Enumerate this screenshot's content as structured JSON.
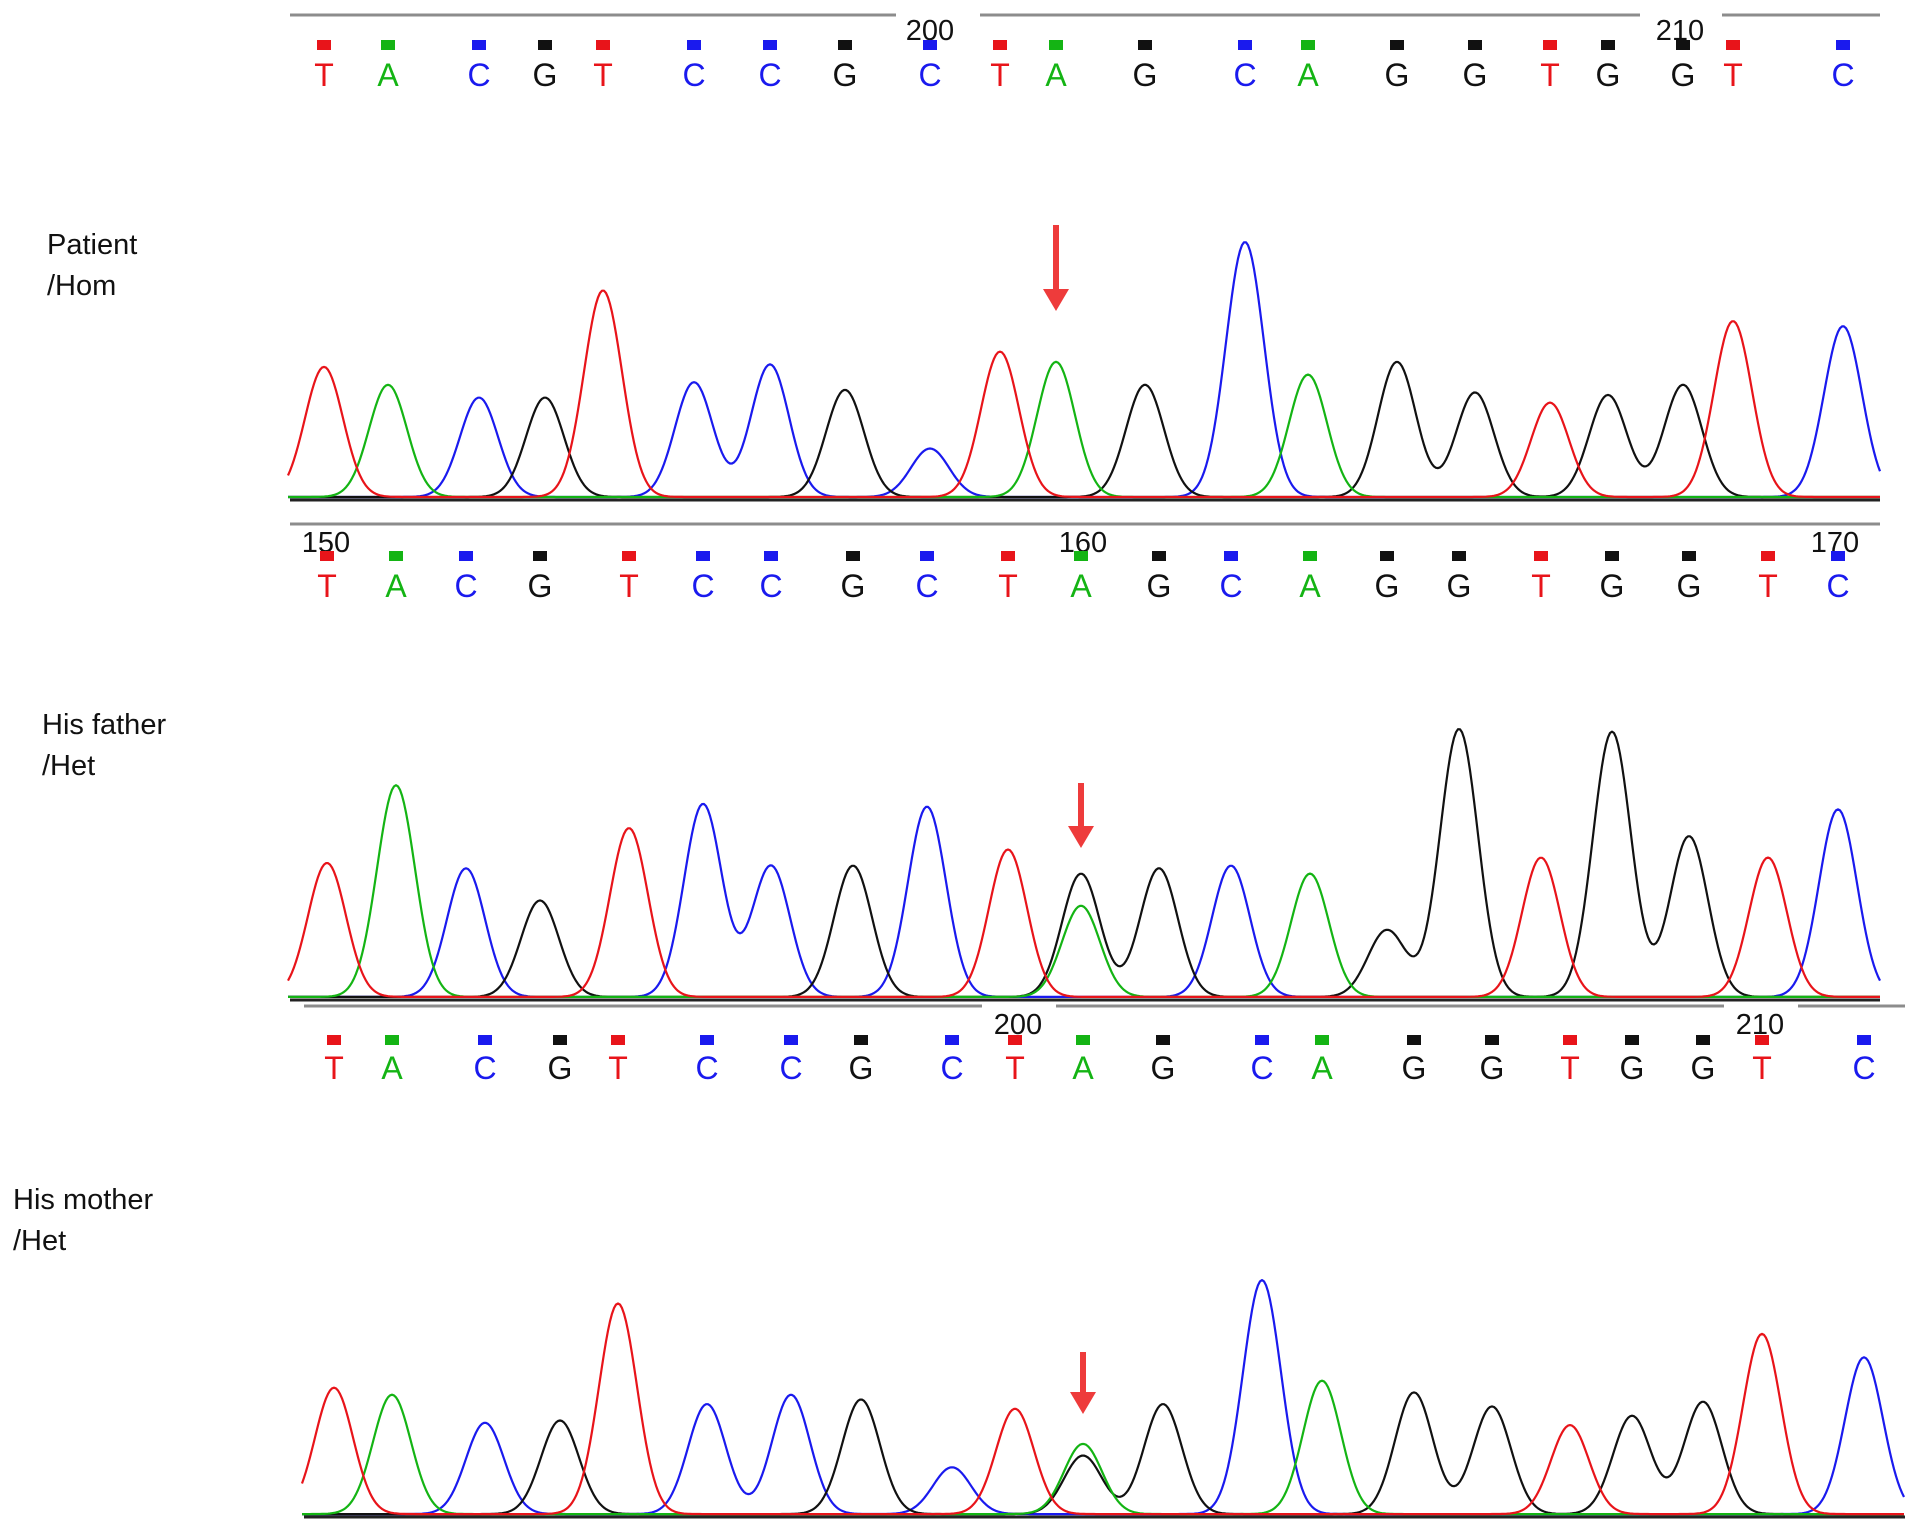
{
  "colors": {
    "T": "#e8141a",
    "A": "#14b414",
    "C": "#1a1aee",
    "G": "#111111",
    "arrow": "#ee3b3b"
  },
  "chart_data": [
    {
      "type": "line",
      "label_lines": [
        "Patient",
        "/Hom"
      ],
      "position_numbers": [
        200,
        210
      ],
      "bases": [
        "T",
        "A",
        "C",
        "G",
        "T",
        "C",
        "C",
        "G",
        "C",
        "T",
        "A",
        "G",
        "C",
        "A",
        "G",
        "G",
        "T",
        "G",
        "G",
        "T",
        "C"
      ],
      "peaks": [
        {
          "base": "T",
          "height": 0.51
        },
        {
          "base": "A",
          "height": 0.44
        },
        {
          "base": "C",
          "height": 0.39
        },
        {
          "base": "G",
          "height": 0.39
        },
        {
          "base": "T",
          "height": 0.81
        },
        {
          "base": "C",
          "height": 0.45
        },
        {
          "base": "C",
          "height": 0.52
        },
        {
          "base": "G",
          "height": 0.42
        },
        {
          "base": "C",
          "height": 0.19
        },
        {
          "base": "T",
          "height": 0.57
        },
        {
          "base": "A",
          "height": 0.53
        },
        {
          "base": "G",
          "height": 0.44
        },
        {
          "base": "C",
          "height": 1.0
        },
        {
          "base": "A",
          "height": 0.48
        },
        {
          "base": "G",
          "height": 0.53
        },
        {
          "base": "G",
          "height": 0.41
        },
        {
          "base": "T",
          "height": 0.37
        },
        {
          "base": "G",
          "height": 0.4
        },
        {
          "base": "G",
          "height": 0.44
        },
        {
          "base": "T",
          "height": 0.69
        },
        {
          "base": "C",
          "height": 0.67
        }
      ],
      "variant_index": 10
    },
    {
      "type": "line",
      "label_lines": [
        "His father",
        "/Het"
      ],
      "position_numbers": [
        150,
        160,
        170
      ],
      "bases": [
        "T",
        "A",
        "C",
        "G",
        "T",
        "C",
        "C",
        "G",
        "C",
        "T",
        "A",
        "G",
        "C",
        "A",
        "G",
        "G",
        "T",
        "G",
        "G",
        "T",
        "C"
      ],
      "peaks": [
        {
          "base": "T",
          "height": 0.5
        },
        {
          "base": "A",
          "height": 0.79
        },
        {
          "base": "C",
          "height": 0.48
        },
        {
          "base": "G",
          "height": 0.36
        },
        {
          "base": "T",
          "height": 0.63
        },
        {
          "base": "C",
          "height": 0.72
        },
        {
          "base": "C",
          "height": 0.49
        },
        {
          "base": "G",
          "height": 0.49
        },
        {
          "base": "C",
          "height": 0.71
        },
        {
          "base": "T",
          "height": 0.55
        },
        {
          "base": "A",
          "height": 0.34
        },
        {
          "base": "G",
          "height": 0.48
        },
        {
          "base": "C",
          "height": 0.49
        },
        {
          "base": "A",
          "height": 0.46
        },
        {
          "base": "G",
          "height": 0.25
        },
        {
          "base": "G",
          "height": 1.0
        },
        {
          "base": "T",
          "height": 0.52
        },
        {
          "base": "G",
          "height": 0.99
        },
        {
          "base": "G",
          "height": 0.6
        },
        {
          "base": "T",
          "height": 0.52
        },
        {
          "base": "C",
          "height": 0.7
        }
      ],
      "variant_index": 10,
      "secondary": {
        "index": 10,
        "base": "G",
        "height": 0.46
      }
    },
    {
      "type": "line",
      "label_lines": [
        "His mother",
        "/Het"
      ],
      "position_numbers": [
        200,
        210
      ],
      "bases": [
        "T",
        "A",
        "C",
        "G",
        "T",
        "C",
        "C",
        "G",
        "C",
        "T",
        "A",
        "G",
        "C",
        "A",
        "G",
        "G",
        "T",
        "G",
        "G",
        "T",
        "C"
      ],
      "peaks": [
        {
          "base": "T",
          "height": 0.54
        },
        {
          "base": "A",
          "height": 0.51
        },
        {
          "base": "C",
          "height": 0.39
        },
        {
          "base": "G",
          "height": 0.4
        },
        {
          "base": "T",
          "height": 0.9
        },
        {
          "base": "C",
          "height": 0.47
        },
        {
          "base": "C",
          "height": 0.51
        },
        {
          "base": "G",
          "height": 0.49
        },
        {
          "base": "C",
          "height": 0.2
        },
        {
          "base": "T",
          "height": 0.45
        },
        {
          "base": "A",
          "height": 0.3
        },
        {
          "base": "G",
          "height": 0.47
        },
        {
          "base": "C",
          "height": 1.0
        },
        {
          "base": "A",
          "height": 0.57
        },
        {
          "base": "G",
          "height": 0.52
        },
        {
          "base": "G",
          "height": 0.46
        },
        {
          "base": "T",
          "height": 0.38
        },
        {
          "base": "G",
          "height": 0.42
        },
        {
          "base": "G",
          "height": 0.48
        },
        {
          "base": "T",
          "height": 0.77
        },
        {
          "base": "C",
          "height": 0.67
        }
      ],
      "variant_index": 10,
      "secondary": {
        "index": 10,
        "base": "G",
        "height": 0.25
      }
    }
  ]
}
